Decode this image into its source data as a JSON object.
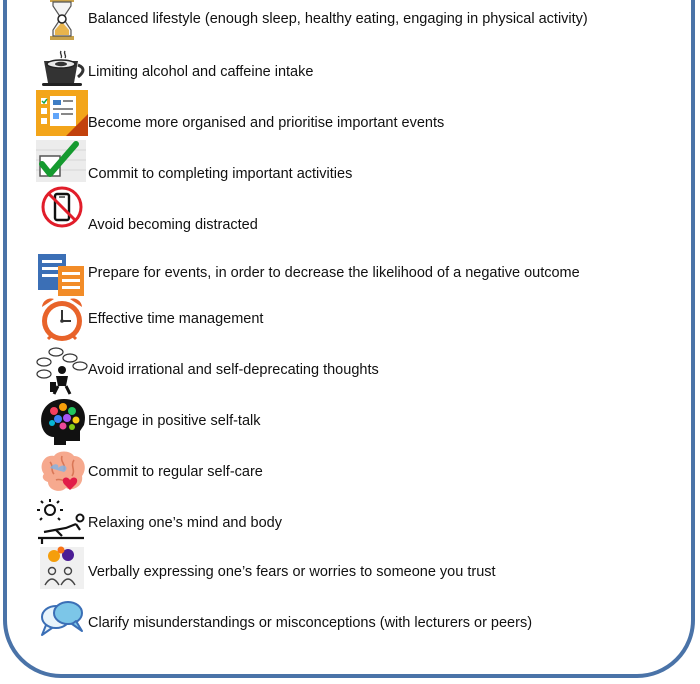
{
  "strategies": [
    {
      "icon": "hourglass-icon",
      "label": "Balanced lifestyle (enough sleep, healthy eating, engaging in physical activity)"
    },
    {
      "icon": "coffee-cup-icon",
      "label": "Limiting alcohol and caffeine intake"
    },
    {
      "icon": "planner-icon",
      "label": "Become more organised and prioritise important events"
    },
    {
      "icon": "checkmark-icon",
      "label": "Commit to completing important activities"
    },
    {
      "icon": "no-phone-icon",
      "label": "Avoid becoming distracted"
    },
    {
      "icon": "documents-icon",
      "label": "Prepare for events, in order to decrease the likelihood of a negative outcome"
    },
    {
      "icon": "alarm-clock-icon",
      "label": "Effective time management"
    },
    {
      "icon": "thinking-person-icon",
      "label": "Avoid irrational and self-deprecating thoughts"
    },
    {
      "icon": "colorful-head-icon",
      "label": "Engage in positive self-talk"
    },
    {
      "icon": "brain-heart-icon",
      "label": "Commit to regular self-care"
    },
    {
      "icon": "relaxing-sun-icon",
      "label": "Relaxing one’s mind and body"
    },
    {
      "icon": "people-talking-icon",
      "label": "Verbally expressing one’s fears or worries to someone you trust"
    },
    {
      "icon": "speech-bubbles-icon",
      "label": "Clarify misunderstandings or misconceptions (with lecturers or peers)"
    }
  ]
}
